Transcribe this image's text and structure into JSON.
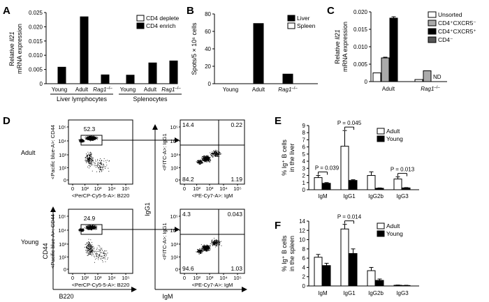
{
  "figure": {
    "panels": [
      {
        "letter": "A",
        "chart_data": {
          "type": "bar",
          "title": "",
          "ylabel_line1": "Relative ",
          "ylabel_gene": "Il21",
          "ylabel_line2": "mRNA expression",
          "ylim": [
            0,
            0.025
          ],
          "yticks": [
            "0",
            "0.005",
            "0.010",
            "0.015",
            "0.020",
            "0.025"
          ],
          "groups": [
            {
              "name": "Liver lymphocytes",
              "categories": [
                "Young",
                "Adult",
                "Rag1–/–"
              ]
            },
            {
              "name": "Splenocytes",
              "categories": [
                "Young",
                "Adult",
                "Rag1–/–"
              ]
            }
          ],
          "series": [
            {
              "name": "CD4 deplete",
              "color": "#ffffff"
            },
            {
              "name": "CD4 enrich",
              "color": "#000000"
            }
          ],
          "bars": [
            {
              "group": 0,
              "category": 0,
              "series": 1,
              "value": 0.0058
            },
            {
              "group": 0,
              "category": 1,
              "series": 1,
              "value": 0.0235
            },
            {
              "group": 0,
              "category": 2,
              "series": 1,
              "value": 0.0031
            },
            {
              "group": 1,
              "category": 0,
              "series": 1,
              "value": 0.003
            },
            {
              "group": 1,
              "category": 1,
              "series": 1,
              "value": 0.0073
            },
            {
              "group": 1,
              "category": 2,
              "series": 1,
              "value": 0.008
            }
          ]
        }
      },
      {
        "letter": "B",
        "chart_data": {
          "type": "bar",
          "ylabel": "Spots/5 × 10⁶ cells",
          "ylim": [
            0,
            80
          ],
          "yticks": [
            "0",
            "20",
            "40",
            "60",
            "80"
          ],
          "categories": [
            "Young",
            "Adult",
            "Rag1–/–"
          ],
          "series": [
            {
              "name": "Liver",
              "color": "#000000",
              "values": [
                0,
                69,
                11
              ]
            },
            {
              "name": "Spleen",
              "color": "#ffffff",
              "values": [
                0,
                0,
                0
              ]
            }
          ]
        }
      },
      {
        "letter": "C",
        "chart_data": {
          "type": "bar",
          "ylabel_line1": "Relative ",
          "ylabel_gene": "Il21",
          "ylabel_line2": "mRNA expression",
          "ylim": [
            0,
            0.02
          ],
          "yticks": [
            "0",
            "0.005",
            "0.010",
            "0.015",
            "0.020"
          ],
          "categories": [
            "Adult",
            "Rag1–/–"
          ],
          "series": [
            {
              "name": "Unsorted",
              "color": "#ffffff",
              "values": [
                0.0025,
                0.0006
              ]
            },
            {
              "name": "CD4⁺CXCR5⁻",
              "color": "#aaaaaa",
              "values": [
                0.0068,
                0.0031
              ]
            },
            {
              "name": "CD4⁺CXCR5⁺",
              "color": "#000000",
              "values": [
                0.0182,
                null
              ]
            },
            {
              "name": "CD4⁻",
              "color": "#555555",
              "values": [
                null,
                null
              ]
            }
          ],
          "errors": [
            [
              0,
              0.0002,
              0.0004,
              0
            ],
            [
              0,
              0,
              0,
              0
            ]
          ],
          "annotation": "ND"
        }
      },
      {
        "letter": "D",
        "rows": [
          {
            "label": "Adult",
            "gate_value": "52.3",
            "quadrants": {
              "ul": "14.4",
              "ur": "0.22",
              "ll": "84.2",
              "lr": "1.19"
            }
          },
          {
            "label": "Young",
            "gate_value": "24.9",
            "quadrants": {
              "ul": "4.3",
              "ur": "0.043",
              "ll": "94.6",
              "lr": "1.03"
            }
          }
        ],
        "left_xaxis": "<PerCP-Cy5-5-A>: B220",
        "left_yaxis": "<Pacific blue-A>: CD44",
        "right_xaxis": "<PE-Cy7-A>: IgM",
        "right_yaxis": "<FITC-A>: IgG1",
        "outer_left_y": "CD44",
        "outer_left_x": "B220",
        "outer_right_y": "IgG1",
        "outer_right_x": "IgM",
        "log_ticks": [
          "0",
          "10²",
          "10³",
          "10⁴",
          "10⁵"
        ]
      },
      {
        "letter": "E",
        "chart_data": {
          "type": "bar",
          "ylabel_line1": "% Ig⁺ B cells",
          "ylabel_line2": "in the liver",
          "ylim": [
            0,
            9
          ],
          "yticks": [
            "0",
            "1",
            "2",
            "3",
            "4",
            "5",
            "6",
            "7",
            "8",
            "9"
          ],
          "categories": [
            "IgM",
            "IgG1",
            "IgG2b",
            "IgG3"
          ],
          "series": [
            {
              "name": "Adult",
              "color": "#ffffff",
              "values": [
                1.7,
                6.1,
                2.0,
                1.5
              ],
              "errors": [
                0.3,
                2.2,
                0.5,
                0.3
              ]
            },
            {
              "name": "Young",
              "color": "#000000",
              "values": [
                0.9,
                1.3,
                0.2,
                0.25
              ],
              "errors": [
                0.1,
                0.1,
                0.05,
                0.05
              ]
            }
          ],
          "pvalues": [
            {
              "category": 0,
              "label": "P = 0.039"
            },
            {
              "category": 1,
              "label": "P = 0.045"
            },
            {
              "category": 3,
              "label": "P = 0.013"
            }
          ]
        }
      },
      {
        "letter": "F",
        "chart_data": {
          "type": "bar",
          "ylabel_line1": "% Ig⁺ B cells",
          "ylabel_line2": "in the spleen",
          "ylim": [
            0,
            14
          ],
          "yticks": [
            "0",
            "2",
            "4",
            "6",
            "8",
            "10",
            "12",
            "14"
          ],
          "categories": [
            "IgM",
            "IgG1",
            "IgG2b",
            "IgG3"
          ],
          "series": [
            {
              "name": "Adult",
              "color": "#ffffff",
              "values": [
                6.2,
                12.3,
                3.3,
                0.15
              ],
              "errors": [
                0.6,
                1.0,
                0.7,
                0.05
              ]
            },
            {
              "name": "Young",
              "color": "#000000",
              "values": [
                4.4,
                7.0,
                1.2,
                0.1
              ],
              "errors": [
                0.5,
                1.0,
                0.3,
                0.05
              ]
            }
          ],
          "pvalues": [
            {
              "category": 1,
              "label": "P = 0.014"
            }
          ]
        }
      }
    ]
  }
}
